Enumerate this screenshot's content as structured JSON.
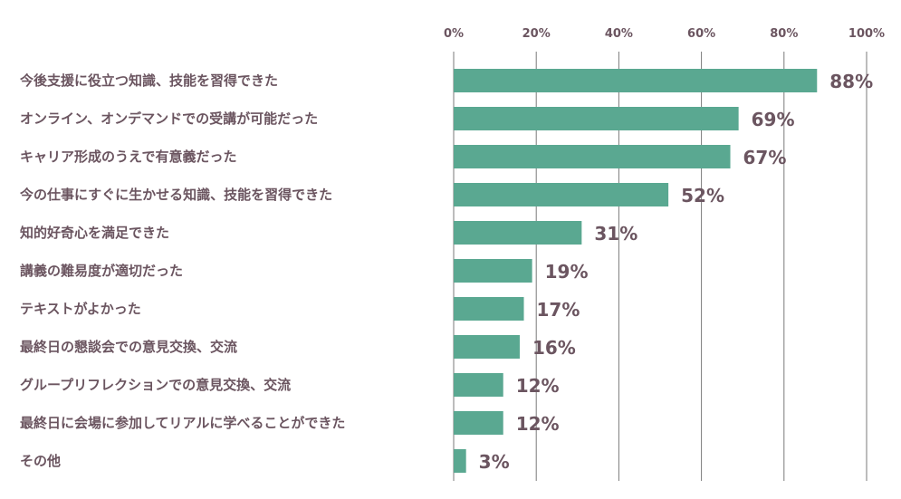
{
  "chart_data": {
    "type": "bar",
    "orientation": "horizontal",
    "categories": [
      "今後支援に役立つ知識、技能を習得できた",
      "オンライン、オンデマンドでの受講が可能だった",
      "キャリア形成のうえで有意義だった",
      "今の仕事にすぐに生かせる知識、技能を習得できた",
      "知的好奇心を満足できた",
      "講義の難易度が適切だった",
      "テキストがよかった",
      "最終日の懇談会での意見交換、交流",
      "グループリフレクションでの意見交換、交流",
      "最終日に会場に参加してリアルに学べることができた",
      "その他"
    ],
    "values": [
      88,
      69,
      67,
      52,
      31,
      19,
      17,
      16,
      12,
      12,
      3
    ],
    "value_labels": [
      "88%",
      "69%",
      "67%",
      "52%",
      "31%",
      "19%",
      "17%",
      "16%",
      "12%",
      "12%",
      "3%"
    ],
    "xlim": [
      0,
      100
    ],
    "xticks": [
      0,
      20,
      40,
      60,
      80,
      100
    ],
    "xtick_labels": [
      "0%",
      "20%",
      "40%",
      "60%",
      "80%",
      "100%"
    ],
    "xaxis_position": "top",
    "grid": true,
    "legend": "none",
    "title": "",
    "xlabel": "",
    "ylabel": ""
  },
  "colors": {
    "bar": "#5aa891",
    "text": "#6b5560",
    "grid": "#7a7a7a"
  }
}
